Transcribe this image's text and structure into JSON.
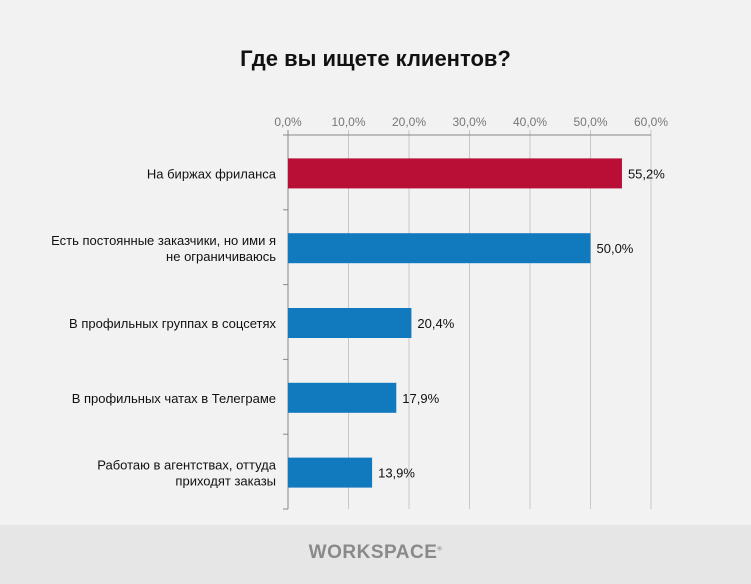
{
  "chart_data": {
    "type": "bar",
    "orientation": "horizontal",
    "title": "Где вы ищете клиентов?",
    "categories": [
      [
        "На биржах фриланса"
      ],
      [
        "Есть постоянные заказчики, но ими я",
        "не ограничиваюсь"
      ],
      [
        "В профильных группах в соцсетях"
      ],
      [
        "В профильных чатах в Телеграме"
      ],
      [
        "Работаю в агентствах, оттуда",
        "приходят заказы"
      ]
    ],
    "values": [
      55.2,
      50.0,
      20.4,
      17.9,
      13.9
    ],
    "data_labels": [
      "55,2%",
      "50,0%",
      "20,4%",
      "17,9%",
      "13,9%"
    ],
    "colors": [
      "#b90e35",
      "#1179bd",
      "#1179bd",
      "#1179bd",
      "#1179bd"
    ],
    "xlim": [
      0,
      60
    ],
    "xticks": [
      0,
      10,
      20,
      30,
      40,
      50,
      60
    ],
    "xtick_labels": [
      "0,0%",
      "10,0%",
      "20,0%",
      "30,0%",
      "40,0%",
      "50,0%",
      "60,0%"
    ],
    "xaxis_position": "top",
    "grid": true,
    "legend": "none"
  },
  "footer": {
    "logo": "WORKSPACE"
  }
}
